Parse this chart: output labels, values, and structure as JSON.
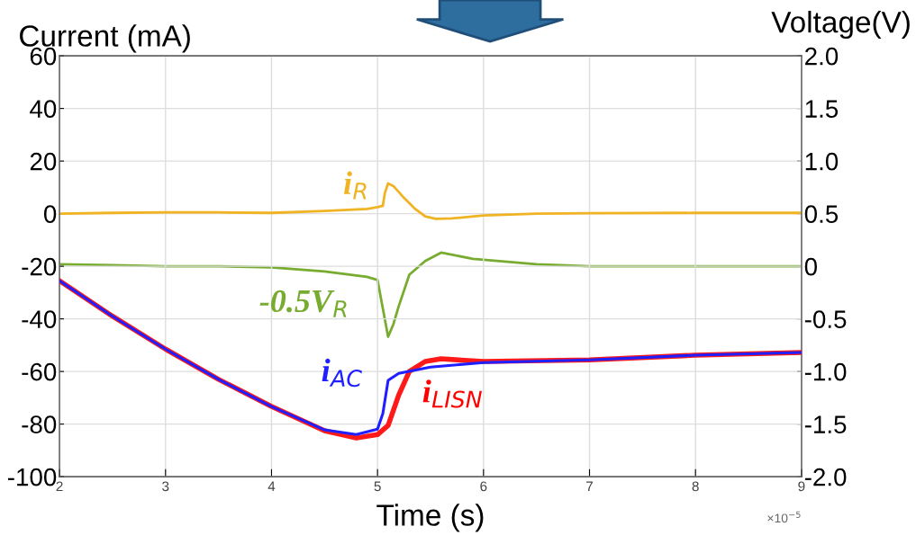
{
  "chart_data": {
    "type": "line",
    "xlabel": "Time (s)",
    "ylabel": "Current (mA)",
    "y2label": "Voltage(V)",
    "xlim": [
      2,
      9
    ],
    "xticks": [
      2,
      3,
      4,
      5,
      6,
      7,
      8,
      9
    ],
    "ylim": [
      -100,
      60
    ],
    "yticks": [
      -100,
      -80,
      -60,
      -40,
      -20,
      0,
      20,
      40,
      60
    ],
    "y2lim": [
      -2.0,
      2.0
    ],
    "y2ticks": [
      {
        "value": -2,
        "label": "-2.0"
      },
      {
        "value": -1.5,
        "label": "-1.5"
      },
      {
        "value": -1,
        "label": "-1.0"
      },
      {
        "value": -0.5,
        "label": "-0.5"
      },
      {
        "value": 0,
        "label": "0"
      },
      {
        "value": 0.5,
        "label": "0.5"
      },
      {
        "value": 1,
        "label": "1.0"
      },
      {
        "value": 1.5,
        "label": "1.5"
      },
      {
        "value": 2,
        "label": "2.0"
      }
    ],
    "grid": true,
    "line_style": "solid",
    "series": [
      {
        "name": "i$_{R}$",
        "color": "#f0b323",
        "x": [
          2,
          2.5,
          3,
          3.5,
          4,
          4.5,
          4.9,
          5.0,
          5.05,
          5.07,
          5.1,
          5.15,
          5.25,
          5.35,
          5.45,
          5.55,
          5.7,
          6,
          6.5,
          7,
          8,
          9
        ],
        "values": [
          0,
          0.3,
          0.5,
          0.5,
          0.3,
          1,
          1.8,
          2.5,
          3,
          8,
          11.5,
          10.5,
          6,
          2,
          -1,
          -2,
          -1.8,
          -0.7,
          0,
          0.2,
          0.3,
          0.3
        ]
      },
      {
        "name": "-0.5V$_{R}$",
        "color": "#77ac30",
        "axis": "y2",
        "x": [
          2,
          2.5,
          3,
          3.5,
          4,
          4.5,
          4.9,
          5.0,
          5.05,
          5.1,
          5.15,
          5.2,
          5.3,
          5.45,
          5.6,
          5.9,
          6.5,
          7,
          8,
          9
        ],
        "values": [
          0.02,
          0.01,
          0.0,
          0.0,
          -0.01,
          -0.05,
          -0.1,
          -0.13,
          -0.4,
          -0.67,
          -0.55,
          -0.38,
          -0.08,
          0.05,
          0.13,
          0.07,
          0.02,
          0.0,
          0.0,
          0.0
        ]
      },
      {
        "name": "i$_{AC}$",
        "color": "#1f1fff",
        "x": [
          2,
          2.5,
          3,
          3.5,
          4,
          4.5,
          4.8,
          5.0,
          5.05,
          5.1,
          5.2,
          5.5,
          6,
          7,
          8,
          9
        ],
        "values": [
          -25.5,
          -39,
          -51.5,
          -63,
          -73.3,
          -82.2,
          -84,
          -81.9,
          -76,
          -63.4,
          -60.7,
          -58.3,
          -56.6,
          -55.6,
          -53.8,
          -52.8
        ]
      },
      {
        "name": "i$_{LISN}$",
        "color": "#ff1a1a",
        "x": [
          2,
          2.5,
          3,
          3.5,
          4,
          4.5,
          4.8,
          5.0,
          5.1,
          5.2,
          5.3,
          5.45,
          5.6,
          6,
          7,
          8,
          9
        ],
        "values": [
          -25.5,
          -39,
          -51.5,
          -63,
          -73.3,
          -82.5,
          -85.3,
          -84,
          -80.5,
          -69,
          -60,
          -56.2,
          -55.2,
          -56.2,
          -55.6,
          -53.8,
          -52.8
        ]
      }
    ],
    "annotations": [
      "×10$^{−5}$"
    ]
  }
}
